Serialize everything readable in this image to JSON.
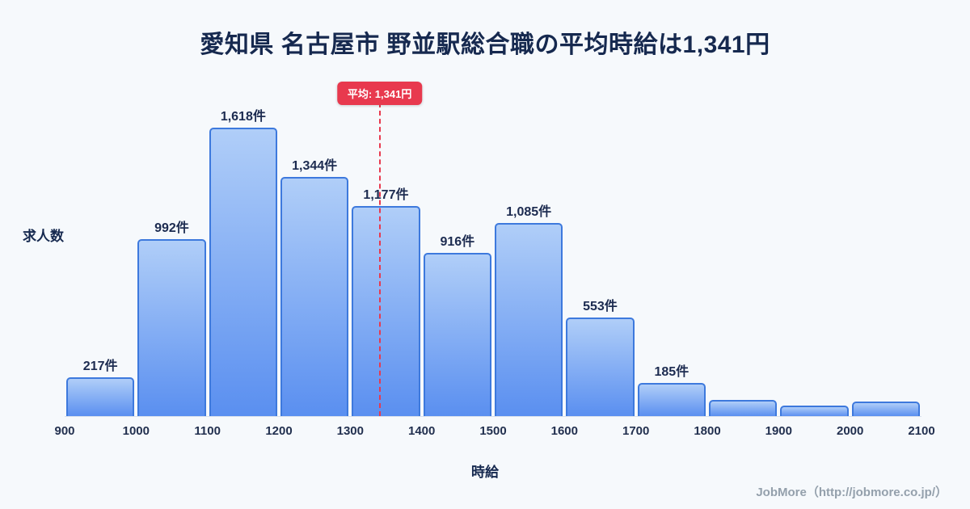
{
  "title": "愛知県 名古屋市 野並駅総合職の平均時給は1,341円",
  "mean_badge": "平均: 1,341円",
  "ylabel": "求人数",
  "xlabel": "時給",
  "footer": "JobMore（http://jobmore.co.jp/）",
  "colors": {
    "background": "#f6f9fc",
    "title": "#16294f",
    "bar_top": "#b0cef8",
    "bar_bottom": "#5a8ff0",
    "bar_border": "#3d79dd",
    "mean_line": "#e8394e",
    "badge_bg": "#e8394e",
    "label": "#1c2b50",
    "footer": "#94a0ac"
  },
  "chart_data": {
    "type": "bar",
    "histogram": true,
    "title": "愛知県 名古屋市 野並駅総合職の平均時給は1,341円",
    "xlabel": "時給",
    "ylabel": "求人数",
    "bin_edges": [
      900,
      1000,
      1100,
      1200,
      1300,
      1400,
      1500,
      1600,
      1700,
      1800,
      1900,
      2000,
      2100
    ],
    "x_ticks": [
      "900",
      "1000",
      "1100",
      "1200",
      "1300",
      "1400",
      "1500",
      "1600",
      "1700",
      "1800",
      "1900",
      "2000",
      "2100"
    ],
    "values": [
      217,
      992,
      1618,
      1344,
      1177,
      916,
      1085,
      553,
      185,
      90,
      60,
      80
    ],
    "labels": [
      "217件",
      "992件",
      "1,618件",
      "1,344件",
      "1,177件",
      "916件",
      "1,085件",
      "553件",
      "185件",
      "",
      "",
      ""
    ],
    "unlabeled_bars_estimated": [
      90,
      60,
      80
    ],
    "mean": 1341,
    "mean_label": "平均: 1,341円",
    "xlim": [
      900,
      2100
    ],
    "ylim": [
      0,
      1700
    ],
    "grid": false,
    "legend": false
  }
}
